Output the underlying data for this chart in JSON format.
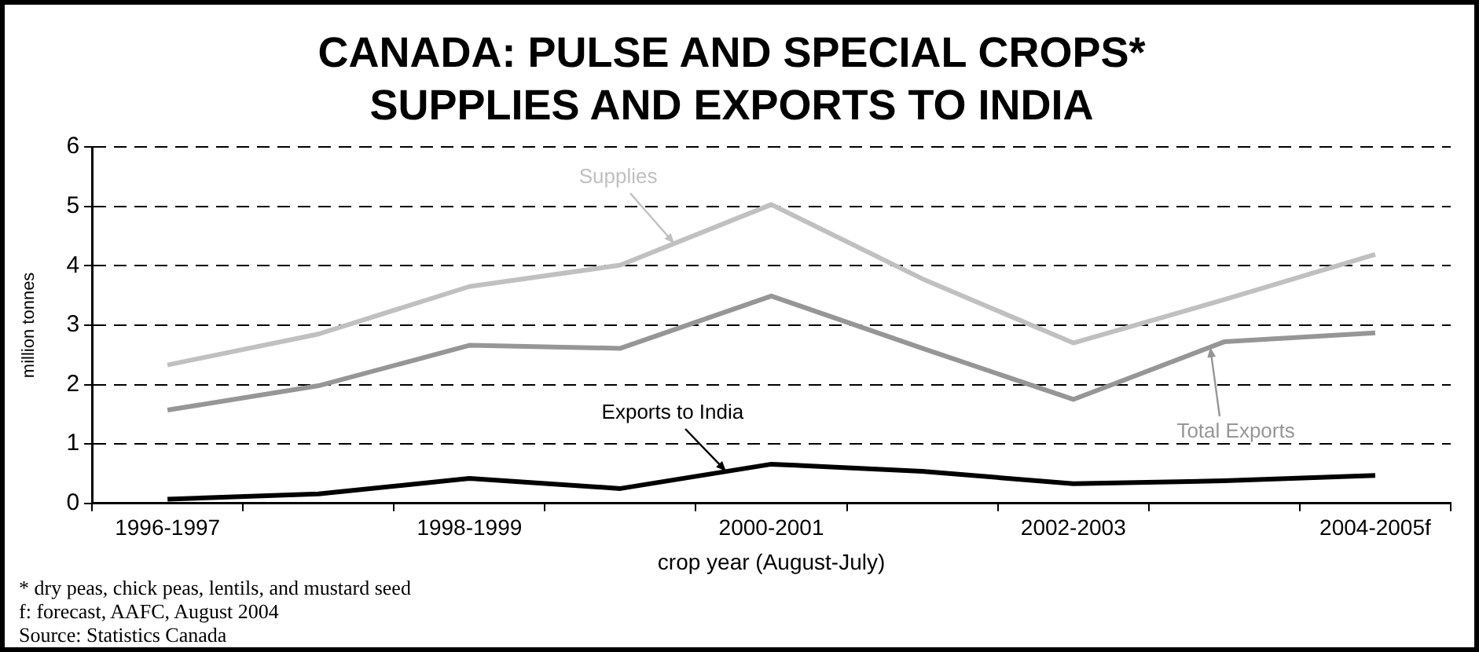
{
  "chart_data": {
    "type": "line",
    "title": "CANADA: PULSE AND SPECIAL CROPS*\nSUPPLIES AND EXPORTS TO INDIA",
    "xlabel": "crop year (August-July)",
    "ylabel": "million tonnes",
    "categories": [
      "1996-1997",
      null,
      "1998-1999",
      null,
      "2000-2001",
      null,
      "2002-2003",
      null,
      "2004-2005f"
    ],
    "series": [
      {
        "name": "Supplies",
        "color": "#c0c0c0",
        "values": [
          2.33,
          2.85,
          3.65,
          4.01,
          5.03,
          3.78,
          2.7,
          3.43,
          4.19
        ]
      },
      {
        "name": "Total Exports",
        "color": "#969696",
        "values": [
          1.57,
          1.98,
          2.66,
          2.61,
          3.49,
          2.61,
          1.75,
          2.72,
          2.87
        ]
      },
      {
        "name": "Exports to India",
        "color": "#000000",
        "values": [
          0.07,
          0.16,
          0.42,
          0.25,
          0.66,
          0.54,
          0.33,
          0.38,
          0.47
        ]
      }
    ],
    "ylim": [
      0,
      6
    ],
    "yticks": [
      0,
      1,
      2,
      3,
      4,
      5,
      6
    ],
    "grid": "y",
    "legend": false,
    "marker": "none",
    "line_style": "solid",
    "annotations": [
      "* dry peas, chick peas, lentils, and mustard seed",
      "f: forecast, AAFC, August 2004",
      "Source: Statistics Canada"
    ]
  }
}
